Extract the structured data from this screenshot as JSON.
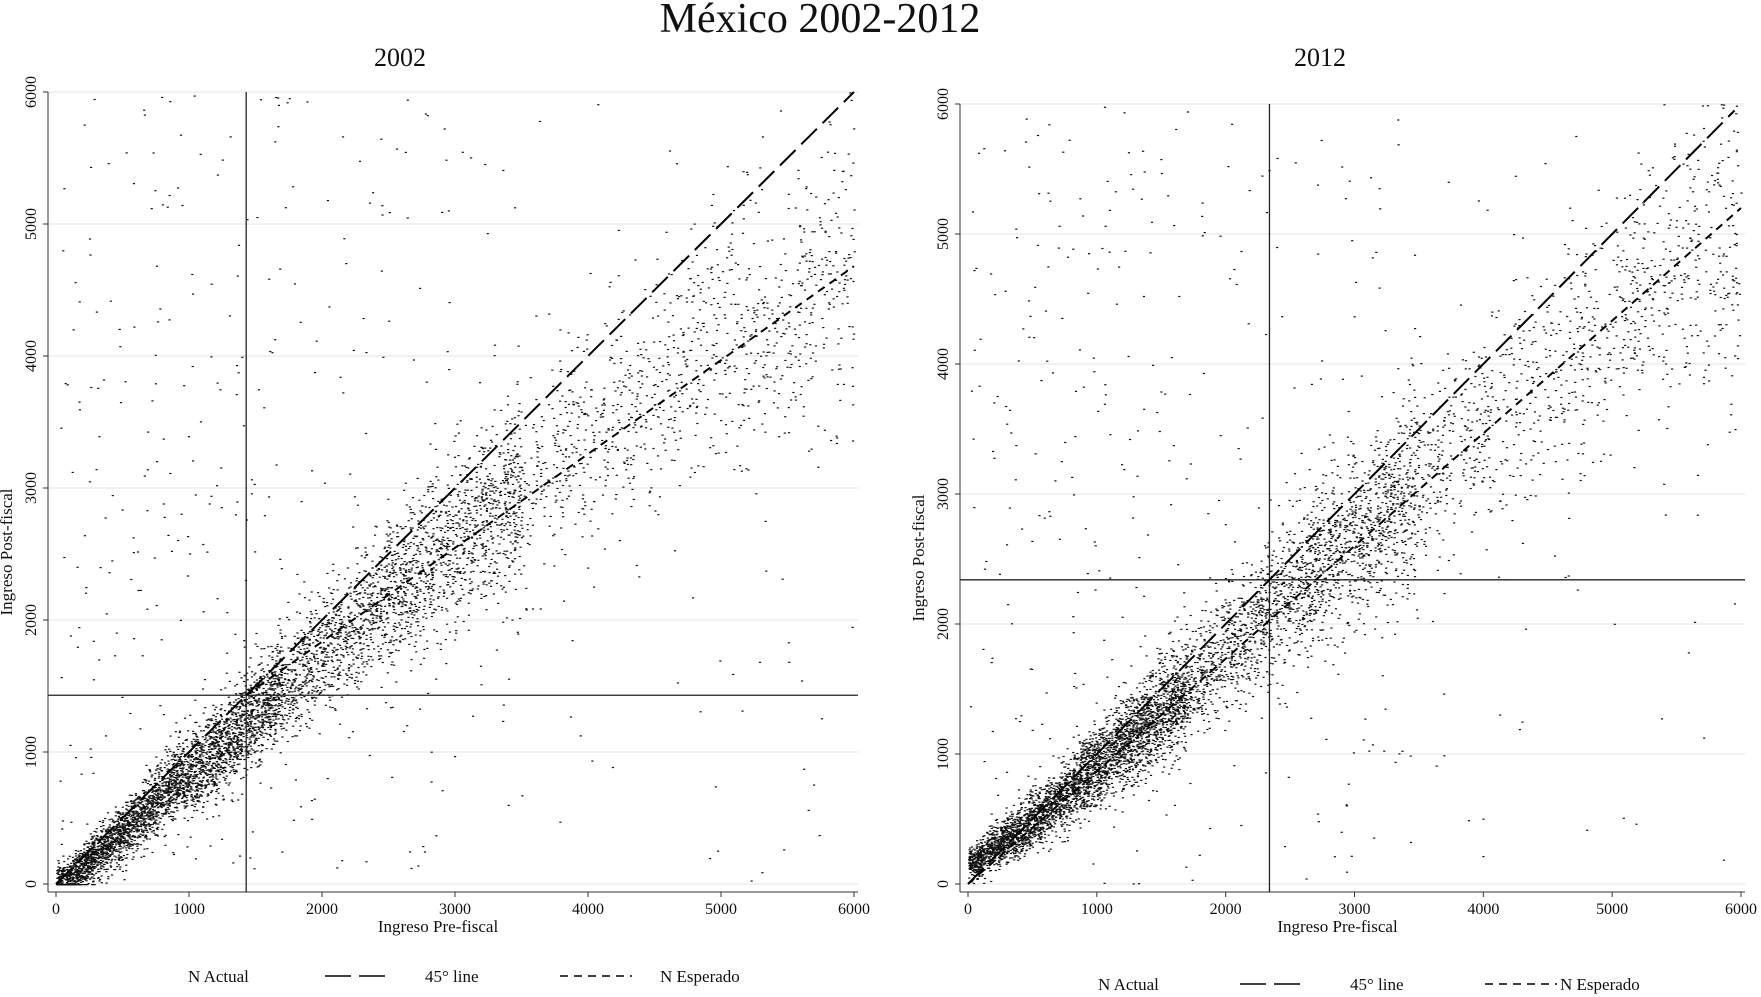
{
  "page_title": "México 2002-2012",
  "chart_data": [
    {
      "type": "scatter",
      "title": "2002",
      "xlabel": "Ingreso Pre-fiscal",
      "ylabel": "Ingreso Post-fiscal",
      "xlim": [
        0,
        6000
      ],
      "ylim": [
        0,
        6000
      ],
      "xticks": [
        0,
        1000,
        2000,
        3000,
        4000,
        5000,
        6000
      ],
      "yticks": [
        0,
        1000,
        2000,
        3000,
        4000,
        5000,
        6000
      ],
      "grid": "horizontal",
      "reference_lines": {
        "vertical_x": 1430,
        "horizontal_y": 1430
      },
      "series": [
        {
          "name": "N Actual",
          "style": "points",
          "description": "household income points",
          "approx_points": [
            [
              50,
              40
            ],
            [
              200,
              180
            ],
            [
              400,
              350
            ],
            [
              600,
              540
            ],
            [
              800,
              740
            ],
            [
              1000,
              900
            ],
            [
              1200,
              1080
            ],
            [
              1400,
              1280
            ],
            [
              1600,
              1480
            ],
            [
              1800,
              1660
            ],
            [
              2000,
              1860
            ],
            [
              2200,
              2000
            ],
            [
              2400,
              2200
            ],
            [
              2600,
              2400
            ],
            [
              2800,
              2580
            ],
            [
              3000,
              2740
            ],
            [
              3200,
              2900
            ],
            [
              3500,
              3150
            ],
            [
              3800,
              3400
            ],
            [
              4200,
              3750
            ],
            [
              4600,
              4050
            ],
            [
              5000,
              4350
            ],
            [
              5500,
              4650
            ],
            [
              5900,
              4900
            ]
          ]
        },
        {
          "name": "45° line",
          "style": "long-dash",
          "x": [
            0,
            6000
          ],
          "y": [
            0,
            6000
          ]
        },
        {
          "name": "N Esperado",
          "style": "short-dash",
          "x": [
            1430,
            6000
          ],
          "y": [
            1430,
            4680
          ]
        }
      ],
      "legend": {
        "position": "bottom",
        "entries": [
          "N Actual",
          "45° line",
          "N Esperado"
        ]
      }
    },
    {
      "type": "scatter",
      "title": "2012",
      "xlabel": "Ingreso Pre-fiscal",
      "ylabel": "Ingreso Post-fiscal",
      "xlim": [
        0,
        6000
      ],
      "ylim": [
        0,
        6000
      ],
      "xticks": [
        0,
        1000,
        2000,
        3000,
        4000,
        5000,
        6000
      ],
      "yticks": [
        0,
        1000,
        2000,
        3000,
        4000,
        5000,
        6000
      ],
      "grid": "horizontal",
      "reference_lines": {
        "vertical_x": 2340,
        "horizontal_y": 2340
      },
      "series": [
        {
          "name": "N Actual",
          "style": "points",
          "description": "household income points",
          "approx_points": [
            [
              50,
              200
            ],
            [
              200,
              330
            ],
            [
              400,
              450
            ],
            [
              600,
              620
            ],
            [
              800,
              800
            ],
            [
              1000,
              980
            ],
            [
              1200,
              1160
            ],
            [
              1400,
              1340
            ],
            [
              1600,
              1520
            ],
            [
              1800,
              1700
            ],
            [
              2000,
              1900
            ],
            [
              2200,
              2080
            ],
            [
              2400,
              2280
            ],
            [
              2600,
              2450
            ],
            [
              2800,
              2640
            ],
            [
              3000,
              2820
            ],
            [
              3300,
              3080
            ],
            [
              3600,
              3350
            ],
            [
              4000,
              3700
            ],
            [
              4400,
              4050
            ],
            [
              4800,
              4400
            ],
            [
              5200,
              4750
            ],
            [
              5600,
              5050
            ],
            [
              5950,
              5250
            ]
          ]
        },
        {
          "name": "45° line",
          "style": "long-dash",
          "x": [
            0,
            5950
          ],
          "y": [
            0,
            5950
          ]
        },
        {
          "name": "N Esperado",
          "style": "short-dash",
          "x": [
            0,
            6000
          ],
          "y": [
            0,
            5200
          ]
        }
      ],
      "legend": {
        "position": "bottom",
        "entries": [
          "N Actual",
          "45° line",
          "N Esperado"
        ]
      }
    }
  ]
}
